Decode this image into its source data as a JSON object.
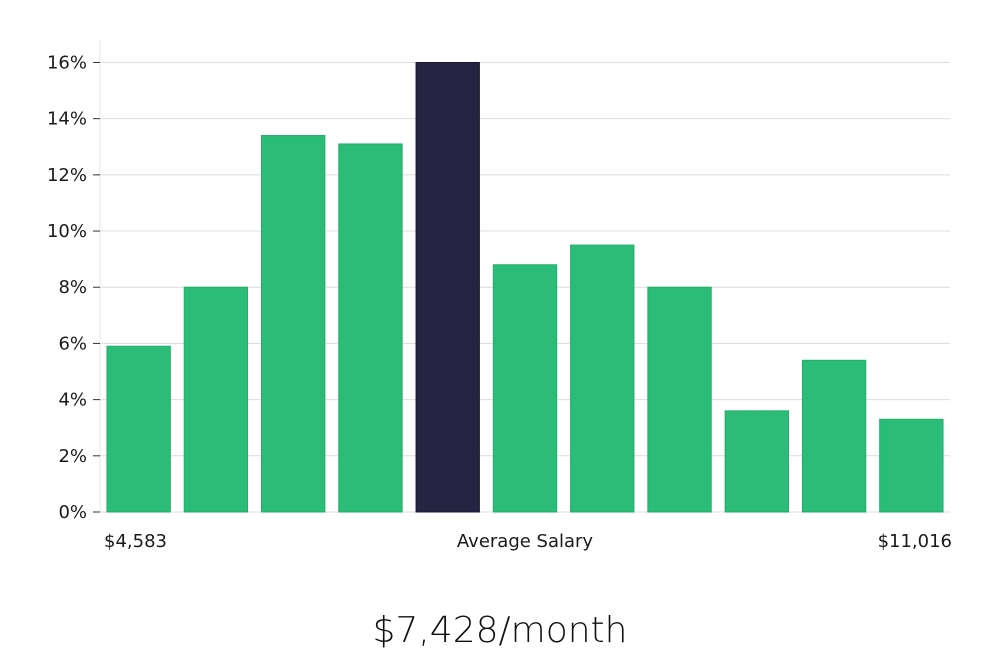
{
  "chart_data": {
    "type": "bar",
    "bins": 11,
    "values": [
      5.9,
      8.0,
      13.4,
      13.1,
      16.0,
      8.8,
      9.5,
      8.0,
      3.6,
      5.4,
      3.3
    ],
    "highlight_index": 4,
    "ylim": [
      0,
      16.8
    ],
    "yticks": [
      "0%",
      "2%",
      "4%",
      "6%",
      "8%",
      "10%",
      "12%",
      "14%",
      "16%"
    ],
    "ytick_values": [
      0,
      2,
      4,
      6,
      8,
      10,
      12,
      14,
      16
    ],
    "x_labels": {
      "left": "$4,583",
      "center": "Average Salary",
      "right": "$11,016"
    },
    "grid": true,
    "colors": {
      "bar": "#2bbd77",
      "highlight": "#272443",
      "grid": "#dcdcdc",
      "axis": "#e4e4e4"
    }
  },
  "footer": {
    "average": "$7,428/month"
  }
}
